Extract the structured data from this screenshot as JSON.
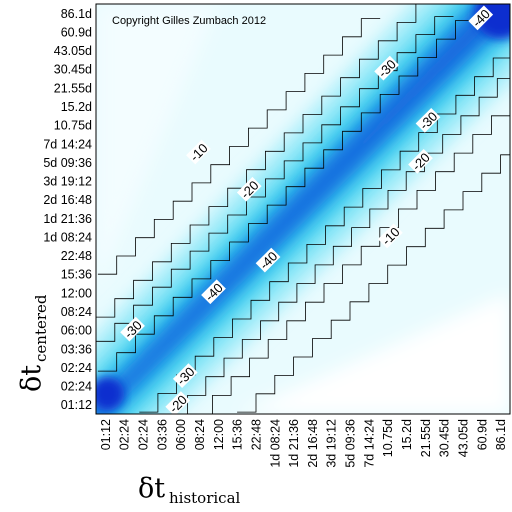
{
  "chart_data": {
    "type": "heatmap",
    "title": "",
    "annotation": "Copyright Gilles Zumbach 2012",
    "xlabel": {
      "symbol": "δt",
      "subscript": "historical"
    },
    "ylabel": {
      "symbol": "δt",
      "subscript": "centered"
    },
    "x_ticks": [
      "01:12",
      "02:24",
      "02:24",
      "03:36",
      "06:00",
      "08:24",
      "12:00",
      "15:36",
      "22:48",
      "1d 08:24",
      "1d 21:36",
      "2d 16:48",
      "3d 19:12",
      "5d 09:36",
      "7d 14:24",
      "10.75d",
      "15.2d",
      "21.55d",
      "30.45d",
      "43.05d",
      "60.9d",
      "86.1d"
    ],
    "y_ticks": [
      "01:12",
      "02:24",
      "02:24",
      "03:36",
      "06:00",
      "08:24",
      "12:00",
      "15:36",
      "22:48",
      "1d 08:24",
      "1d 21:36",
      "2d 16:48",
      "3d 19:12",
      "5d 09:36",
      "7d 14:24",
      "10.75d",
      "15.2d",
      "21.55d",
      "30.45d",
      "43.05d",
      "60.9d",
      "86.1d"
    ],
    "contour_levels": [
      -10,
      -20,
      -30,
      -40
    ],
    "contour_labels": [
      {
        "text": "-10",
        "x": 5.0,
        "y": 13.5
      },
      {
        "text": "-20",
        "x": 7.7,
        "y": 11.5
      },
      {
        "text": "-30",
        "x": 15.0,
        "y": 18.0
      },
      {
        "text": "-40",
        "x": 20.0,
        "y": 20.7
      },
      {
        "text": "-30",
        "x": 17.2,
        "y": 15.2
      },
      {
        "text": "-20",
        "x": 16.8,
        "y": 13.0
      },
      {
        "text": "-10",
        "x": 15.2,
        "y": 9.0
      },
      {
        "text": "-40",
        "x": 8.7,
        "y": 7.7
      },
      {
        "text": "-40",
        "x": 5.8,
        "y": 6.0
      },
      {
        "text": "-30",
        "x": 1.5,
        "y": 4.0
      },
      {
        "text": "-30",
        "x": 4.3,
        "y": 1.5
      },
      {
        "text": "-20",
        "x": 3.9,
        "y": 0.0
      }
    ],
    "colors": {
      "low": "#ffffff",
      "mid": "#3fd0ee",
      "high": "#0a2ecf"
    },
    "grid": false,
    "legend": "none"
  }
}
